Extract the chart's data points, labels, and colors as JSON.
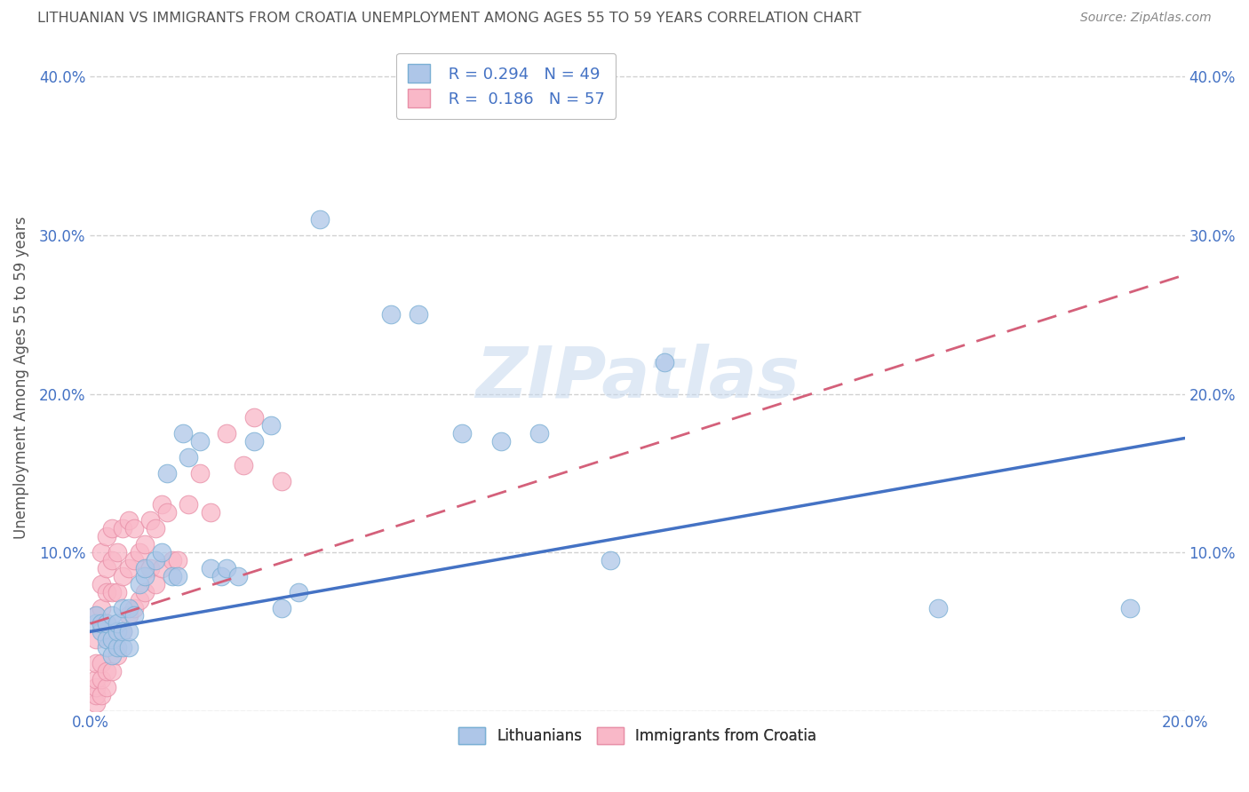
{
  "title": "LITHUANIAN VS IMMIGRANTS FROM CROATIA UNEMPLOYMENT AMONG AGES 55 TO 59 YEARS CORRELATION CHART",
  "source": "Source: ZipAtlas.com",
  "ylabel": "Unemployment Among Ages 55 to 59 years",
  "xlim": [
    0.0,
    0.2
  ],
  "ylim": [
    0.0,
    0.42
  ],
  "xticks": [
    0.0,
    0.2
  ],
  "xtick_labels": [
    "0.0%",
    "20.0%"
  ],
  "yticks": [
    0.0,
    0.1,
    0.2,
    0.3,
    0.4
  ],
  "ytick_labels": [
    "",
    "10.0%",
    "20.0%",
    "30.0%",
    "40.0%"
  ],
  "series1_name": "Lithuanians",
  "series1_color": "#aec6e8",
  "series1_edge_color": "#7aafd4",
  "series1_line_color": "#4472c4",
  "series1_R": 0.294,
  "series1_N": 49,
  "series2_name": "Immigrants from Croatia",
  "series2_color": "#f9b8c8",
  "series2_edge_color": "#e890a8",
  "series2_line_color": "#d4607a",
  "series2_R": 0.186,
  "series2_N": 57,
  "background_color": "#ffffff",
  "grid_color": "#cccccc",
  "title_color": "#555555",
  "axis_tick_color": "#4472c4",
  "watermark": "ZIPatlas",
  "watermark_color": "#c5d8ee",
  "lith_x": [
    0.001,
    0.001,
    0.002,
    0.002,
    0.003,
    0.003,
    0.003,
    0.004,
    0.004,
    0.004,
    0.005,
    0.005,
    0.005,
    0.006,
    0.006,
    0.006,
    0.007,
    0.007,
    0.007,
    0.008,
    0.009,
    0.01,
    0.01,
    0.012,
    0.013,
    0.014,
    0.015,
    0.016,
    0.017,
    0.018,
    0.02,
    0.022,
    0.024,
    0.025,
    0.027,
    0.03,
    0.033,
    0.035,
    0.038,
    0.042,
    0.055,
    0.06,
    0.068,
    0.075,
    0.082,
    0.095,
    0.105,
    0.155,
    0.19
  ],
  "lith_y": [
    0.055,
    0.06,
    0.05,
    0.055,
    0.04,
    0.045,
    0.055,
    0.035,
    0.045,
    0.06,
    0.04,
    0.05,
    0.055,
    0.04,
    0.05,
    0.065,
    0.04,
    0.05,
    0.065,
    0.06,
    0.08,
    0.085,
    0.09,
    0.095,
    0.1,
    0.15,
    0.085,
    0.085,
    0.175,
    0.16,
    0.17,
    0.09,
    0.085,
    0.09,
    0.085,
    0.17,
    0.18,
    0.065,
    0.075,
    0.31,
    0.25,
    0.25,
    0.175,
    0.17,
    0.175,
    0.095,
    0.22,
    0.065,
    0.065
  ],
  "cro_x": [
    0.001,
    0.001,
    0.001,
    0.001,
    0.001,
    0.001,
    0.001,
    0.002,
    0.002,
    0.002,
    0.002,
    0.002,
    0.002,
    0.002,
    0.003,
    0.003,
    0.003,
    0.003,
    0.003,
    0.003,
    0.004,
    0.004,
    0.004,
    0.004,
    0.004,
    0.005,
    0.005,
    0.005,
    0.006,
    0.006,
    0.006,
    0.007,
    0.007,
    0.007,
    0.008,
    0.008,
    0.008,
    0.009,
    0.009,
    0.01,
    0.01,
    0.011,
    0.011,
    0.012,
    0.012,
    0.013,
    0.013,
    0.014,
    0.015,
    0.016,
    0.018,
    0.02,
    0.022,
    0.025,
    0.028,
    0.03,
    0.035
  ],
  "cro_y": [
    0.005,
    0.01,
    0.015,
    0.02,
    0.03,
    0.045,
    0.06,
    0.01,
    0.02,
    0.03,
    0.055,
    0.065,
    0.08,
    0.1,
    0.015,
    0.025,
    0.055,
    0.075,
    0.09,
    0.11,
    0.025,
    0.045,
    0.075,
    0.095,
    0.115,
    0.035,
    0.075,
    0.1,
    0.05,
    0.085,
    0.115,
    0.06,
    0.09,
    0.12,
    0.065,
    0.095,
    0.115,
    0.07,
    0.1,
    0.075,
    0.105,
    0.09,
    0.12,
    0.08,
    0.115,
    0.09,
    0.13,
    0.125,
    0.095,
    0.095,
    0.13,
    0.15,
    0.125,
    0.175,
    0.155,
    0.185,
    0.145
  ],
  "lith_trend_x": [
    0.0,
    0.2
  ],
  "lith_trend_y": [
    0.05,
    0.172
  ],
  "cro_trend_x": [
    0.0,
    0.2
  ],
  "cro_trend_y": [
    0.055,
    0.275
  ]
}
